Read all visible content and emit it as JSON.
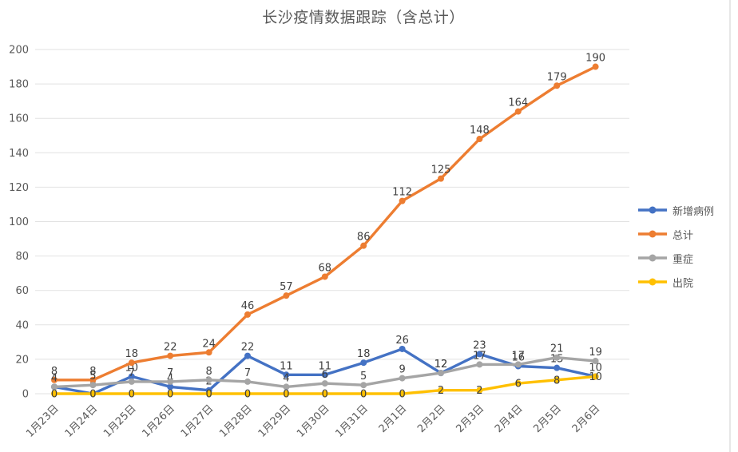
{
  "chart_data": {
    "type": "line",
    "title": "长沙疫情数据跟踪（含总计）",
    "categories": [
      "1月23日",
      "1月24日",
      "1月25日",
      "1月26日",
      "1月27日",
      "1月28日",
      "1月29日",
      "1月30日",
      "1月31日",
      "2月1日",
      "2月2日",
      "2月3日",
      "2月4日",
      "2月5日",
      "2月6日"
    ],
    "series": [
      {
        "name": "新增病例",
        "color": "#4472C4",
        "values": [
          4,
          0,
          10,
          4,
          2,
          22,
          11,
          11,
          18,
          26,
          12,
          23,
          16,
          15,
          10
        ],
        "label_position": "above"
      },
      {
        "name": "总计",
        "color": "#ED7D31",
        "values": [
          8,
          8,
          18,
          22,
          24,
          46,
          57,
          68,
          86,
          112,
          125,
          148,
          164,
          179,
          190
        ],
        "label_position": "above"
      },
      {
        "name": "重症",
        "color": "#A5A5A5",
        "values": [
          4,
          5,
          7,
          7,
          8,
          7,
          4,
          6,
          5,
          9,
          12,
          17,
          17,
          21,
          19
        ],
        "label_position": "above"
      },
      {
        "name": "出院",
        "color": "#FFC000",
        "values": [
          0,
          0,
          0,
          0,
          0,
          0,
          0,
          0,
          0,
          0,
          2,
          2,
          6,
          8,
          10
        ],
        "label_position": "center"
      }
    ],
    "ylim": [
      0,
      200
    ],
    "ytick_step": 20,
    "grid": true,
    "legend_position": "right",
    "xlabel": "",
    "ylabel": "",
    "label_color": "#404040",
    "axis_text_color": "#595959",
    "grid_color": "#e2e2e2"
  }
}
